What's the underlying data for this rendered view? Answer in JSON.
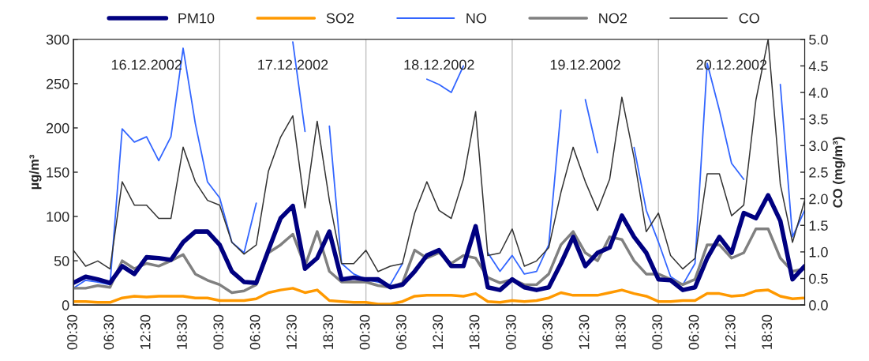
{
  "chart_data": {
    "type": "line",
    "x": [
      "2002-12-16T00:30",
      "2002-12-16T02:30",
      "2002-12-16T04:30",
      "2002-12-16T06:30",
      "2002-12-16T08:30",
      "2002-12-16T10:30",
      "2002-12-16T12:30",
      "2002-12-16T14:30",
      "2002-12-16T16:30",
      "2002-12-16T18:30",
      "2002-12-16T20:30",
      "2002-12-16T22:30",
      "2002-12-17T00:30",
      "2002-12-17T02:30",
      "2002-12-17T04:30",
      "2002-12-17T06:30",
      "2002-12-17T08:30",
      "2002-12-17T10:30",
      "2002-12-17T12:30",
      "2002-12-17T14:30",
      "2002-12-17T16:30",
      "2002-12-17T18:30",
      "2002-12-17T20:30",
      "2002-12-17T22:30",
      "2002-12-18T00:30",
      "2002-12-18T02:30",
      "2002-12-18T04:30",
      "2002-12-18T06:30",
      "2002-12-18T08:30",
      "2002-12-18T10:30",
      "2002-12-18T12:30",
      "2002-12-18T14:30",
      "2002-12-18T16:30",
      "2002-12-18T18:30",
      "2002-12-18T20:30",
      "2002-12-18T22:30",
      "2002-12-19T00:30",
      "2002-12-19T02:30",
      "2002-12-19T04:30",
      "2002-12-19T06:30",
      "2002-12-19T08:30",
      "2002-12-19T10:30",
      "2002-12-19T12:30",
      "2002-12-19T14:30",
      "2002-12-19T16:30",
      "2002-12-19T18:30",
      "2002-12-19T20:30",
      "2002-12-19T22:30",
      "2002-12-20T00:30",
      "2002-12-20T02:30",
      "2002-12-20T04:30",
      "2002-12-20T06:30",
      "2002-12-20T08:30",
      "2002-12-20T10:30",
      "2002-12-20T12:30",
      "2002-12-20T14:30",
      "2002-12-20T16:30",
      "2002-12-20T18:30",
      "2002-12-20T20:30",
      "2002-12-20T22:30",
      "2002-12-21T00:30"
    ],
    "xlim": [
      "2002-12-16T00:30",
      "2002-12-21T00:30"
    ],
    "xticks": [
      {
        "value": "2002-12-16T00:30",
        "label": "00:30"
      },
      {
        "value": "2002-12-16T06:30",
        "label": "06:30"
      },
      {
        "value": "2002-12-16T12:30",
        "label": "12:30"
      },
      {
        "value": "2002-12-16T18:30",
        "label": "18:30"
      },
      {
        "value": "2002-12-17T00:30",
        "label": "00:30"
      },
      {
        "value": "2002-12-17T06:30",
        "label": "06:30"
      },
      {
        "value": "2002-12-17T12:30",
        "label": "12:30"
      },
      {
        "value": "2002-12-17T18:30",
        "label": "18:30"
      },
      {
        "value": "2002-12-18T00:30",
        "label": "00:30"
      },
      {
        "value": "2002-12-18T06:30",
        "label": "06:30"
      },
      {
        "value": "2002-12-18T12:30",
        "label": "12:30"
      },
      {
        "value": "2002-12-18T18:30",
        "label": "18:30"
      },
      {
        "value": "2002-12-19T00:30",
        "label": "00:30"
      },
      {
        "value": "2002-12-19T06:30",
        "label": "06:30"
      },
      {
        "value": "2002-12-19T12:30",
        "label": "12:30"
      },
      {
        "value": "2002-12-19T18:30",
        "label": "18:30"
      },
      {
        "value": "2002-12-20T00:30",
        "label": "00:30"
      },
      {
        "value": "2002-12-20T06:30",
        "label": "06:30"
      },
      {
        "value": "2002-12-20T12:30",
        "label": "12:30"
      },
      {
        "value": "2002-12-20T18:30",
        "label": "18:30"
      }
    ],
    "series": [
      {
        "name": "PM10",
        "color": "#000080",
        "values": [
          25,
          32,
          29,
          25,
          44,
          35,
          54,
          53,
          51,
          71,
          83,
          83,
          68,
          38,
          26,
          25,
          62,
          98,
          112,
          41,
          53,
          83,
          29,
          31,
          29,
          29,
          20,
          23,
          38,
          56,
          62,
          44,
          44,
          89,
          20,
          17,
          29,
          20,
          17,
          20,
          47,
          77,
          44,
          59,
          65,
          101,
          77,
          59,
          29,
          28,
          17,
          20,
          53,
          77,
          59,
          104,
          98,
          124,
          95,
          29,
          44
        ]
      },
      {
        "name": "SO2",
        "color": "#ff9900",
        "values": [
          4,
          4,
          3,
          3,
          8,
          10,
          9,
          10,
          10,
          10,
          8,
          8,
          5,
          5,
          5,
          7,
          14,
          17,
          19,
          14,
          17,
          5,
          4,
          3,
          3,
          1,
          1,
          4,
          10,
          11,
          11,
          11,
          10,
          13,
          4,
          3,
          5,
          4,
          5,
          8,
          14,
          11,
          11,
          11,
          14,
          17,
          13,
          10,
          4,
          4,
          5,
          5,
          13,
          13,
          10,
          11,
          16,
          17,
          10,
          7,
          8
        ]
      },
      {
        "name": "NO",
        "color": "#3366ff",
        "values": [
          19,
          28,
          26,
          23,
          199,
          184,
          190,
          163,
          190,
          290,
          205,
          139,
          121,
          71,
          59,
          115,
          null,
          null,
          297,
          196,
          null,
          202,
          47,
          35,
          29,
          26,
          23,
          47,
          null,
          255,
          249,
          240,
          270,
          null,
          59,
          38,
          56,
          35,
          38,
          68,
          220,
          null,
          232,
          172,
          null,
          null,
          178,
          107,
          71,
          32,
          23,
          47,
          273,
          220,
          160,
          142,
          null,
          null,
          249,
          77,
          107
        ]
      },
      {
        "name": "NO2",
        "color": "#808080",
        "values": [
          19,
          19,
          22,
          20,
          50,
          41,
          47,
          44,
          50,
          57,
          35,
          28,
          23,
          14,
          16,
          23,
          59,
          68,
          80,
          44,
          83,
          38,
          26,
          26,
          26,
          22,
          20,
          25,
          62,
          53,
          59,
          47,
          56,
          53,
          31,
          25,
          29,
          23,
          23,
          35,
          68,
          83,
          59,
          50,
          77,
          74,
          50,
          35,
          35,
          29,
          23,
          29,
          68,
          68,
          53,
          59,
          86,
          86,
          53,
          38,
          41
        ]
      },
      {
        "name": "CO",
        "color": "#333333",
        "axis": "y2",
        "values": [
          1.03,
          0.73,
          0.83,
          0.68,
          2.32,
          1.88,
          1.88,
          1.63,
          1.63,
          2.97,
          2.32,
          1.97,
          1.88,
          1.18,
          0.96,
          1.13,
          2.52,
          3.16,
          3.56,
          1.83,
          3.46,
          1.97,
          0.78,
          0.78,
          1.03,
          0.63,
          0.73,
          0.78,
          1.73,
          2.32,
          1.78,
          1.63,
          2.37,
          3.64,
          0.93,
          0.98,
          1.43,
          0.73,
          0.83,
          1.08,
          2.12,
          2.97,
          2.32,
          1.78,
          2.37,
          3.91,
          2.77,
          1.38,
          1.73,
          0.93,
          0.68,
          0.88,
          2.47,
          2.47,
          1.68,
          1.88,
          3.86,
          5.0,
          2.27,
          1.18,
          1.97
        ]
      }
    ],
    "ylim": [
      0,
      300
    ],
    "yticks": [
      0,
      50,
      100,
      150,
      200,
      250,
      300
    ],
    "y2lim": [
      0,
      5
    ],
    "y2ticks": [
      {
        "value": 0,
        "label": "0.0"
      },
      {
        "value": 0.5,
        "label": "0.5"
      },
      {
        "value": 1,
        "label": "1.0"
      },
      {
        "value": 1.5,
        "label": "1.5"
      },
      {
        "value": 2,
        "label": "2.0"
      },
      {
        "value": 2.5,
        "label": "2.5"
      },
      {
        "value": 3,
        "label": "3.0"
      },
      {
        "value": 3.5,
        "label": "3.5"
      },
      {
        "value": 4,
        "label": "4.0"
      },
      {
        "value": 4.5,
        "label": "4.5"
      },
      {
        "value": 5,
        "label": "5.0"
      }
    ],
    "ylabel": "µg/m³",
    "y2label": "CO (mg/m³)",
    "ref_lines": [
      {
        "axis": "x",
        "value": "2002-12-17T00:30",
        "color": "#c0c0c0"
      },
      {
        "axis": "x",
        "value": "2002-12-18T00:30",
        "color": "#c0c0c0"
      },
      {
        "axis": "x",
        "value": "2002-12-19T00:30",
        "color": "#c0c0c0"
      },
      {
        "axis": "x",
        "value": "2002-12-20T00:30",
        "color": "#c0c0c0"
      }
    ],
    "annotations": [
      "16.12.2002",
      "17.12.2002",
      "18.12.2002",
      "19.12.2002",
      "20.12.2002"
    ],
    "legend": "top",
    "grid": false,
    "line_style": "solid",
    "marker": "none"
  }
}
